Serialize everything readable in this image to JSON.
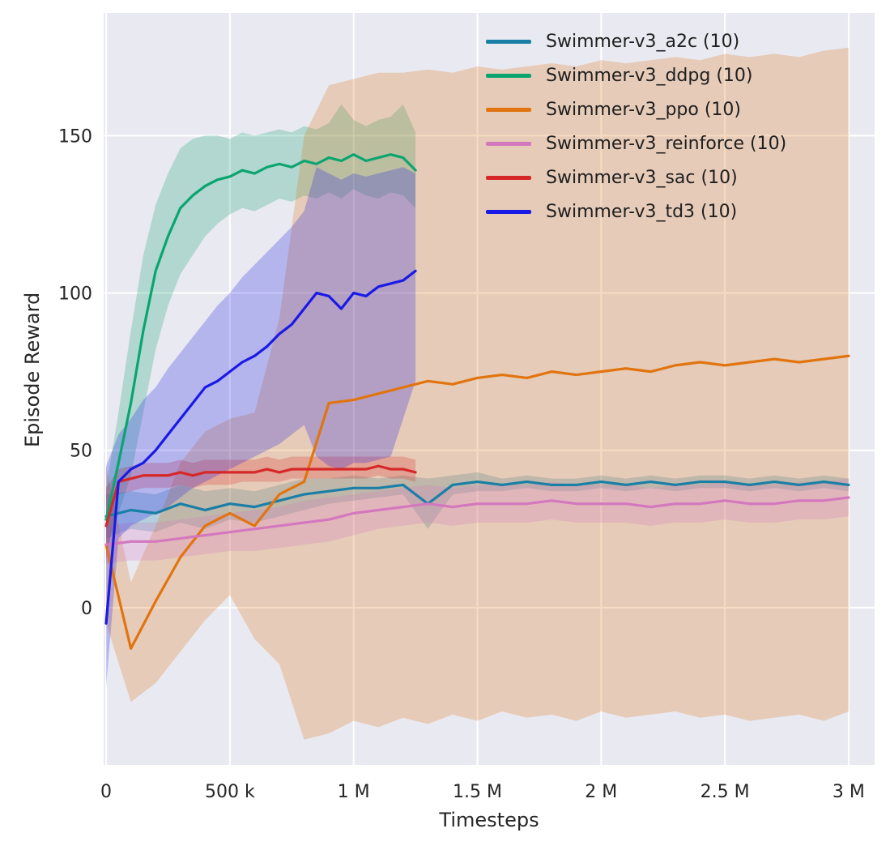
{
  "chart_data": {
    "type": "line",
    "title": "",
    "xlabel": "Timesteps",
    "ylabel": "Episode Reward",
    "x_unit": "timesteps, values stored in thousands",
    "xlim": [
      -10,
      3105
    ],
    "ylim": [
      -50,
      189
    ],
    "grid": true,
    "plot_bg": "#e9e9f1",
    "grid_color": "#ffffff",
    "legend_position": "upper right",
    "x_ticks": {
      "values": [
        0,
        500,
        1000,
        1500,
        2000,
        2500,
        3000
      ],
      "labels": [
        "0",
        "500 k",
        "1 M",
        "1.5 M",
        "2 M",
        "2.5 M",
        "3 M"
      ]
    },
    "y_ticks": {
      "values": [
        0,
        50,
        100,
        150
      ],
      "labels": [
        "0",
        "50",
        "100",
        "150"
      ]
    },
    "series": [
      {
        "id": "a2c",
        "name": "Swimmer-v3_a2c (10)",
        "color": "#1a7fa6",
        "x": [
          0,
          100,
          200,
          300,
          400,
          500,
          600,
          700,
          800,
          900,
          1000,
          1100,
          1200,
          1300,
          1400,
          1500,
          1600,
          1700,
          1800,
          1900,
          2000,
          2100,
          2200,
          2300,
          2400,
          2500,
          2600,
          2700,
          2800,
          2900,
          3000
        ],
        "y": [
          29,
          31,
          30,
          33,
          31,
          33,
          32,
          34,
          36,
          37,
          38,
          38,
          39,
          33,
          39,
          40,
          39,
          40,
          39,
          39,
          40,
          39,
          40,
          39,
          40,
          40,
          39,
          40,
          39,
          40,
          39
        ],
        "band_low": [
          22,
          25,
          24,
          27,
          25,
          28,
          27,
          29,
          31,
          33,
          34,
          35,
          36,
          25,
          36,
          37,
          37,
          38,
          37,
          37,
          38,
          37,
          38,
          37,
          38,
          38,
          37,
          38,
          37,
          38,
          37
        ],
        "band_high": [
          36,
          37,
          36,
          39,
          37,
          38,
          37,
          39,
          41,
          41,
          42,
          41,
          42,
          41,
          42,
          43,
          41,
          42,
          41,
          41,
          42,
          41,
          42,
          41,
          42,
          42,
          41,
          42,
          41,
          42,
          41
        ]
      },
      {
        "id": "ddpg",
        "name": "Swimmer-v3_ddpg (10)",
        "color": "#0aa56f",
        "x": [
          0,
          50,
          100,
          150,
          200,
          250,
          300,
          350,
          400,
          450,
          500,
          550,
          600,
          650,
          700,
          750,
          800,
          850,
          900,
          950,
          1000,
          1050,
          1100,
          1150,
          1200,
          1250
        ],
        "y": [
          28,
          46,
          65,
          88,
          107,
          118,
          127,
          131,
          134,
          136,
          137,
          139,
          138,
          140,
          141,
          140,
          142,
          141,
          143,
          142,
          144,
          142,
          143,
          144,
          143,
          139
        ],
        "band_low": [
          18,
          30,
          42,
          62,
          82,
          96,
          106,
          112,
          118,
          122,
          125,
          127,
          126,
          128,
          130,
          129,
          131,
          130,
          132,
          130,
          133,
          131,
          130,
          132,
          131,
          127
        ],
        "band_high": [
          38,
          62,
          88,
          112,
          128,
          138,
          146,
          149,
          150,
          150,
          149,
          151,
          150,
          151,
          152,
          151,
          153,
          152,
          154,
          160,
          155,
          153,
          155,
          156,
          160,
          151
        ]
      },
      {
        "id": "ppo",
        "name": "Swimmer-v3_ppo (10)",
        "color": "#e1740f",
        "x": [
          0,
          100,
          200,
          300,
          400,
          500,
          600,
          700,
          800,
          900,
          1000,
          1100,
          1200,
          1300,
          1400,
          1500,
          1600,
          1700,
          1800,
          1900,
          2000,
          2100,
          2200,
          2300,
          2400,
          2500,
          2600,
          2700,
          2800,
          2900,
          3000
        ],
        "y": [
          20,
          -13,
          2,
          16,
          26,
          30,
          26,
          36,
          40,
          65,
          66,
          68,
          70,
          72,
          71,
          73,
          74,
          73,
          75,
          74,
          75,
          76,
          75,
          77,
          78,
          77,
          78,
          79,
          78,
          79,
          80
        ],
        "band_low": [
          -5,
          -30,
          -24,
          -14,
          -4,
          4,
          -10,
          -18,
          -42,
          -40,
          -36,
          -38,
          -35,
          -37,
          -34,
          -36,
          -33,
          -35,
          -34,
          -36,
          -33,
          -35,
          -34,
          -33,
          -35,
          -34,
          -36,
          -35,
          -34,
          -36,
          -33
        ],
        "band_high": [
          45,
          8,
          26,
          46,
          56,
          60,
          62,
          92,
          150,
          166,
          168,
          170,
          170,
          171,
          170,
          172,
          171,
          172,
          173,
          172,
          174,
          173,
          174,
          175,
          174,
          176,
          175,
          176,
          175,
          177,
          178
        ]
      },
      {
        "id": "reinforce",
        "name": "Swimmer-v3_reinforce (10)",
        "color": "#d478be",
        "x": [
          0,
          100,
          200,
          300,
          400,
          500,
          600,
          700,
          800,
          900,
          1000,
          1100,
          1200,
          1300,
          1400,
          1500,
          1600,
          1700,
          1800,
          1900,
          2000,
          2100,
          2200,
          2300,
          2400,
          2500,
          2600,
          2700,
          2800,
          2900,
          3000
        ],
        "y": [
          20,
          21,
          21,
          22,
          23,
          24,
          25,
          26,
          27,
          28,
          30,
          31,
          32,
          33,
          32,
          33,
          33,
          33,
          34,
          33,
          33,
          33,
          32,
          33,
          33,
          34,
          33,
          33,
          34,
          34,
          35
        ],
        "band_low": [
          14,
          15,
          15,
          16,
          17,
          18,
          18,
          19,
          20,
          21,
          23,
          25,
          26,
          27,
          26,
          27,
          27,
          27,
          28,
          27,
          27,
          27,
          26,
          27,
          27,
          28,
          27,
          27,
          28,
          28,
          29
        ],
        "band_high": [
          26,
          27,
          27,
          28,
          29,
          30,
          31,
          32,
          34,
          35,
          36,
          37,
          38,
          39,
          38,
          39,
          39,
          39,
          40,
          39,
          39,
          39,
          38,
          39,
          39,
          40,
          39,
          39,
          40,
          40,
          41
        ]
      },
      {
        "id": "sac",
        "name": "Swimmer-v3_sac (10)",
        "color": "#d62828",
        "x": [
          0,
          50,
          100,
          150,
          200,
          250,
          300,
          350,
          400,
          450,
          500,
          550,
          600,
          650,
          700,
          750,
          800,
          850,
          900,
          950,
          1000,
          1050,
          1100,
          1150,
          1200,
          1250
        ],
        "y": [
          26,
          40,
          41,
          42,
          42,
          42,
          43,
          42,
          43,
          43,
          43,
          43,
          43,
          44,
          43,
          44,
          44,
          44,
          44,
          44,
          44,
          44,
          45,
          44,
          44,
          43
        ],
        "band_low": [
          15,
          36,
          37,
          38,
          38,
          38,
          39,
          38,
          39,
          39,
          39,
          40,
          40,
          40,
          40,
          41,
          41,
          41,
          41,
          41,
          41,
          41,
          42,
          41,
          41,
          40
        ],
        "band_high": [
          38,
          44,
          45,
          46,
          46,
          46,
          47,
          46,
          47,
          47,
          47,
          47,
          47,
          48,
          47,
          48,
          48,
          48,
          48,
          48,
          48,
          48,
          48,
          48,
          48,
          47
        ]
      },
      {
        "id": "td3",
        "name": "Swimmer-v3_td3 (10)",
        "color": "#1a1ae6",
        "x": [
          0,
          50,
          100,
          150,
          200,
          250,
          300,
          350,
          400,
          450,
          500,
          550,
          600,
          650,
          700,
          750,
          800,
          850,
          900,
          950,
          1000,
          1050,
          1100,
          1150,
          1200,
          1250
        ],
        "y": [
          -5,
          40,
          44,
          46,
          50,
          55,
          60,
          65,
          70,
          72,
          75,
          78,
          80,
          83,
          87,
          90,
          95,
          100,
          99,
          95,
          100,
          99,
          102,
          103,
          104,
          107
        ],
        "band_low": [
          -25,
          22,
          26,
          28,
          30,
          32,
          35,
          38,
          40,
          42,
          44,
          46,
          48,
          50,
          52,
          55,
          58,
          48,
          45,
          44,
          46,
          46,
          47,
          48,
          60,
          72
        ],
        "band_high": [
          45,
          55,
          60,
          66,
          70,
          76,
          81,
          86,
          91,
          96,
          100,
          105,
          109,
          113,
          117,
          121,
          126,
          140,
          138,
          136,
          138,
          137,
          138,
          139,
          140,
          138
        ]
      }
    ]
  }
}
